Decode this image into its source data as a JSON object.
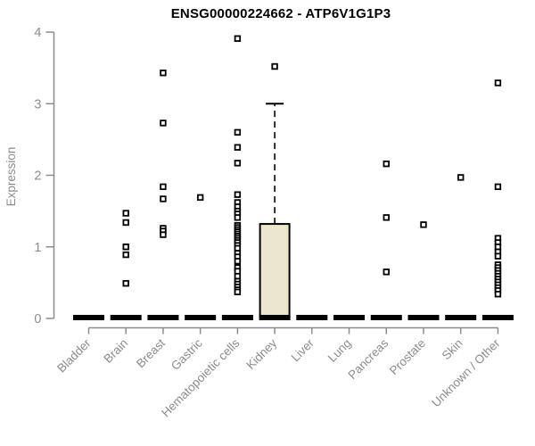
{
  "chart_data": {
    "type": "boxplot",
    "title": "ENSG00000224662 - ATP6V1G1P3",
    "ylabel": "Expression",
    "xlabel": "",
    "ylim": [
      0,
      4
    ],
    "yticks": [
      0,
      1,
      2,
      3,
      4
    ],
    "grid": false,
    "legend": "none",
    "categories": [
      "Bladder",
      "Brain",
      "Breast",
      "Gastric",
      "Hematopoietic cells",
      "Kidney",
      "Liver",
      "Lung",
      "Pancreas",
      "Prostate",
      "Skin",
      "Unknown / Other"
    ],
    "groups": [
      {
        "name": "Bladder",
        "q1": 0,
        "median": 0,
        "q3": 0,
        "whisker_low": 0,
        "whisker_high": 0,
        "outliers": []
      },
      {
        "name": "Brain",
        "q1": 0,
        "median": 0,
        "q3": 0,
        "whisker_low": 0,
        "whisker_high": 0,
        "outliers": [
          1.47,
          1.34,
          1.0,
          0.89,
          0.49
        ]
      },
      {
        "name": "Breast",
        "q1": 0,
        "median": 0,
        "q3": 0,
        "whisker_low": 0,
        "whisker_high": 0,
        "outliers": [
          3.43,
          2.73,
          1.84,
          1.67,
          1.26,
          1.22,
          1.17
        ]
      },
      {
        "name": "Gastric",
        "q1": 0,
        "median": 0,
        "q3": 0,
        "whisker_low": 0,
        "whisker_high": 0,
        "outliers": [
          1.69
        ]
      },
      {
        "name": "Hematopoietic cells",
        "q1": 0,
        "median": 0,
        "q3": 0,
        "whisker_low": 0,
        "whisker_high": 0,
        "outliers": [
          3.91,
          2.6,
          2.39,
          2.17,
          1.73,
          1.62,
          1.56,
          1.5,
          1.46,
          1.41,
          1.3,
          1.27,
          1.24,
          1.21,
          1.18,
          1.15,
          1.12,
          1.09,
          1.06,
          1.02,
          0.98,
          0.91,
          0.86,
          0.8,
          0.71,
          0.66,
          0.59,
          0.52,
          0.48,
          0.44,
          0.4,
          0.37
        ]
      },
      {
        "name": "Kidney",
        "q1": 0,
        "median": 0,
        "q3": 1.32,
        "whisker_low": 0,
        "whisker_high": 3.0,
        "outliers": [
          3.52
        ]
      },
      {
        "name": "Liver",
        "q1": 0,
        "median": 0,
        "q3": 0,
        "whisker_low": 0,
        "whisker_high": 0,
        "outliers": []
      },
      {
        "name": "Lung",
        "q1": 0,
        "median": 0,
        "q3": 0,
        "whisker_low": 0,
        "whisker_high": 0,
        "outliers": []
      },
      {
        "name": "Pancreas",
        "q1": 0,
        "median": 0,
        "q3": 0,
        "whisker_low": 0,
        "whisker_high": 0,
        "outliers": [
          2.16,
          1.41,
          0.65
        ]
      },
      {
        "name": "Prostate",
        "q1": 0,
        "median": 0,
        "q3": 0,
        "whisker_low": 0,
        "whisker_high": 0,
        "outliers": [
          1.31
        ]
      },
      {
        "name": "Skin",
        "q1": 0,
        "median": 0,
        "q3": 0,
        "whisker_low": 0,
        "whisker_high": 0,
        "outliers": [
          1.97
        ]
      },
      {
        "name": "Unknown / Other",
        "q1": 0,
        "median": 0,
        "q3": 0,
        "whisker_low": 0,
        "whisker_high": 0,
        "outliers": [
          3.29,
          1.84,
          1.12,
          1.06,
          1.0,
          0.93,
          0.87,
          0.75,
          0.71,
          0.67,
          0.63,
          0.59,
          0.55,
          0.51,
          0.47,
          0.43,
          0.39,
          0.34
        ]
      }
    ],
    "colors": {
      "box_fill": "#ece7cc",
      "box_border": "#000000",
      "median": "#000000",
      "points": "#000000",
      "axis": "#8c8c8c",
      "title": "#000000"
    }
  }
}
